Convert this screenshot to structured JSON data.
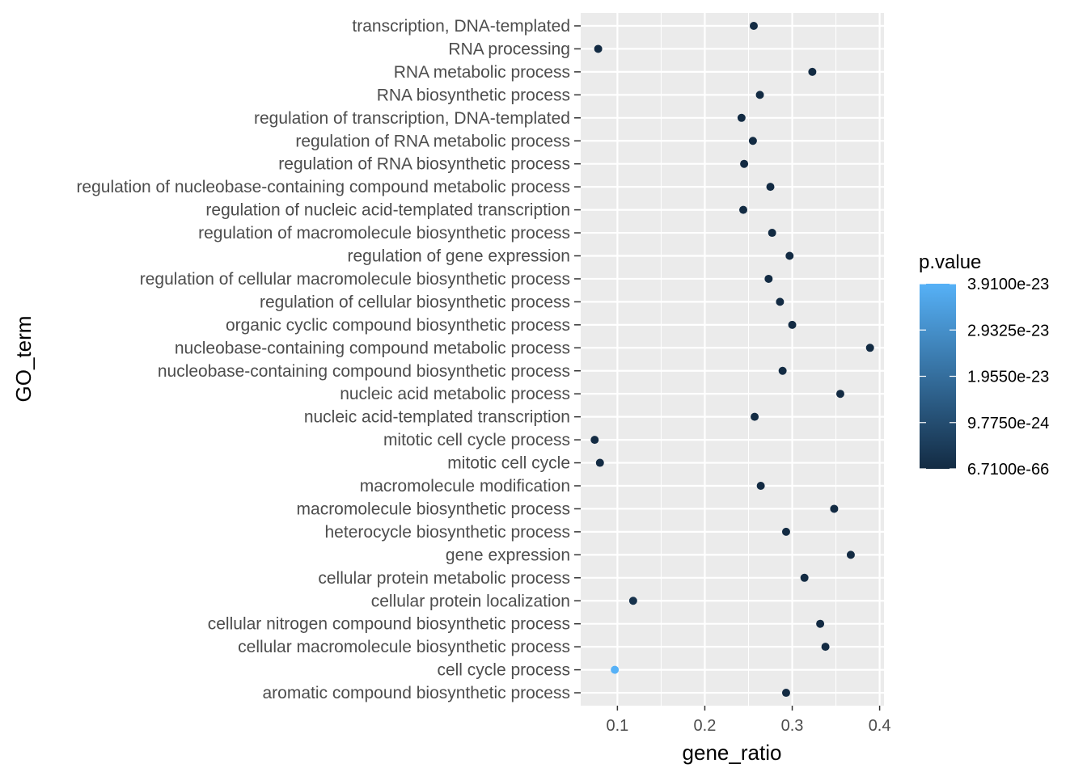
{
  "chart_data": {
    "type": "scatter",
    "xlabel": "gene_ratio",
    "ylabel": "GO_term",
    "xlim": [
      0.058,
      0.405
    ],
    "xticks": [
      0.1,
      0.2,
      0.3,
      0.4
    ],
    "xtick_labels": [
      "0.1",
      "0.2",
      "0.3",
      "0.4"
    ],
    "grid": true,
    "legend": {
      "title": "p.value",
      "placement": "right",
      "type": "colorbar",
      "low_color": "#132B43",
      "high_color": "#56B1F7",
      "min": 6.71e-66,
      "max": 3.91e-23,
      "labels": [
        "3.9100e-23",
        "2.9325e-23",
        "1.9550e-23",
        "9.7750e-24",
        "6.7100e-66"
      ],
      "label_values": [
        3.91e-23,
        2.9325e-23,
        1.955e-23,
        9.775e-24,
        6.71e-66
      ]
    },
    "points": [
      {
        "term": "transcription, DNA-templated",
        "gene_ratio": 0.256,
        "p_value": 1e-30
      },
      {
        "term": "RNA processing",
        "gene_ratio": 0.078,
        "p_value": 1e-28
      },
      {
        "term": "RNA metabolic process",
        "gene_ratio": 0.323,
        "p_value": 1e-50
      },
      {
        "term": "RNA biosynthetic process",
        "gene_ratio": 0.263,
        "p_value": 1e-30
      },
      {
        "term": "regulation of transcription, DNA-templated",
        "gene_ratio": 0.242,
        "p_value": 1e-27
      },
      {
        "term": "regulation of RNA metabolic process",
        "gene_ratio": 0.255,
        "p_value": 1e-28
      },
      {
        "term": "regulation of RNA biosynthetic process",
        "gene_ratio": 0.245,
        "p_value": 1e-27
      },
      {
        "term": "regulation of nucleobase-containing compound metabolic process",
        "gene_ratio": 0.275,
        "p_value": 1e-30
      },
      {
        "term": "regulation of nucleic acid-templated transcription",
        "gene_ratio": 0.244,
        "p_value": 1e-27
      },
      {
        "term": "regulation of macromolecule biosynthetic process",
        "gene_ratio": 0.277,
        "p_value": 1e-30
      },
      {
        "term": "regulation of gene expression",
        "gene_ratio": 0.297,
        "p_value": 1e-35
      },
      {
        "term": "regulation of cellular macromolecule biosynthetic process",
        "gene_ratio": 0.273,
        "p_value": 1e-30
      },
      {
        "term": "regulation of cellular biosynthetic process",
        "gene_ratio": 0.286,
        "p_value": 1e-32
      },
      {
        "term": "organic cyclic compound biosynthetic process",
        "gene_ratio": 0.3,
        "p_value": 1e-36
      },
      {
        "term": "nucleobase-containing compound metabolic process",
        "gene_ratio": 0.389,
        "p_value": 6.71e-66
      },
      {
        "term": "nucleobase-containing compound biosynthetic process",
        "gene_ratio": 0.289,
        "p_value": 1e-33
      },
      {
        "term": "nucleic acid metabolic process",
        "gene_ratio": 0.355,
        "p_value": 1e-55
      },
      {
        "term": "nucleic acid-templated transcription",
        "gene_ratio": 0.257,
        "p_value": 1e-30
      },
      {
        "term": "mitotic cell cycle process",
        "gene_ratio": 0.074,
        "p_value": 1e-26
      },
      {
        "term": "mitotic cell cycle",
        "gene_ratio": 0.08,
        "p_value": 1e-26
      },
      {
        "term": "macromolecule modification",
        "gene_ratio": 0.264,
        "p_value": 1e-28
      },
      {
        "term": "macromolecule biosynthetic process",
        "gene_ratio": 0.348,
        "p_value": 1e-45
      },
      {
        "term": "heterocycle biosynthetic process",
        "gene_ratio": 0.293,
        "p_value": 1e-34
      },
      {
        "term": "gene expression",
        "gene_ratio": 0.367,
        "p_value": 1e-55
      },
      {
        "term": "cellular protein metabolic process",
        "gene_ratio": 0.314,
        "p_value": 1e-38
      },
      {
        "term": "cellular protein localization",
        "gene_ratio": 0.118,
        "p_value": 2e-24
      },
      {
        "term": "cellular nitrogen compound biosynthetic process",
        "gene_ratio": 0.332,
        "p_value": 1e-42
      },
      {
        "term": "cellular macromolecule biosynthetic process",
        "gene_ratio": 0.338,
        "p_value": 1e-43
      },
      {
        "term": "cell cycle process",
        "gene_ratio": 0.097,
        "p_value": 3.91e-23
      },
      {
        "term": "aromatic compound biosynthetic process",
        "gene_ratio": 0.293,
        "p_value": 1e-34
      }
    ]
  }
}
